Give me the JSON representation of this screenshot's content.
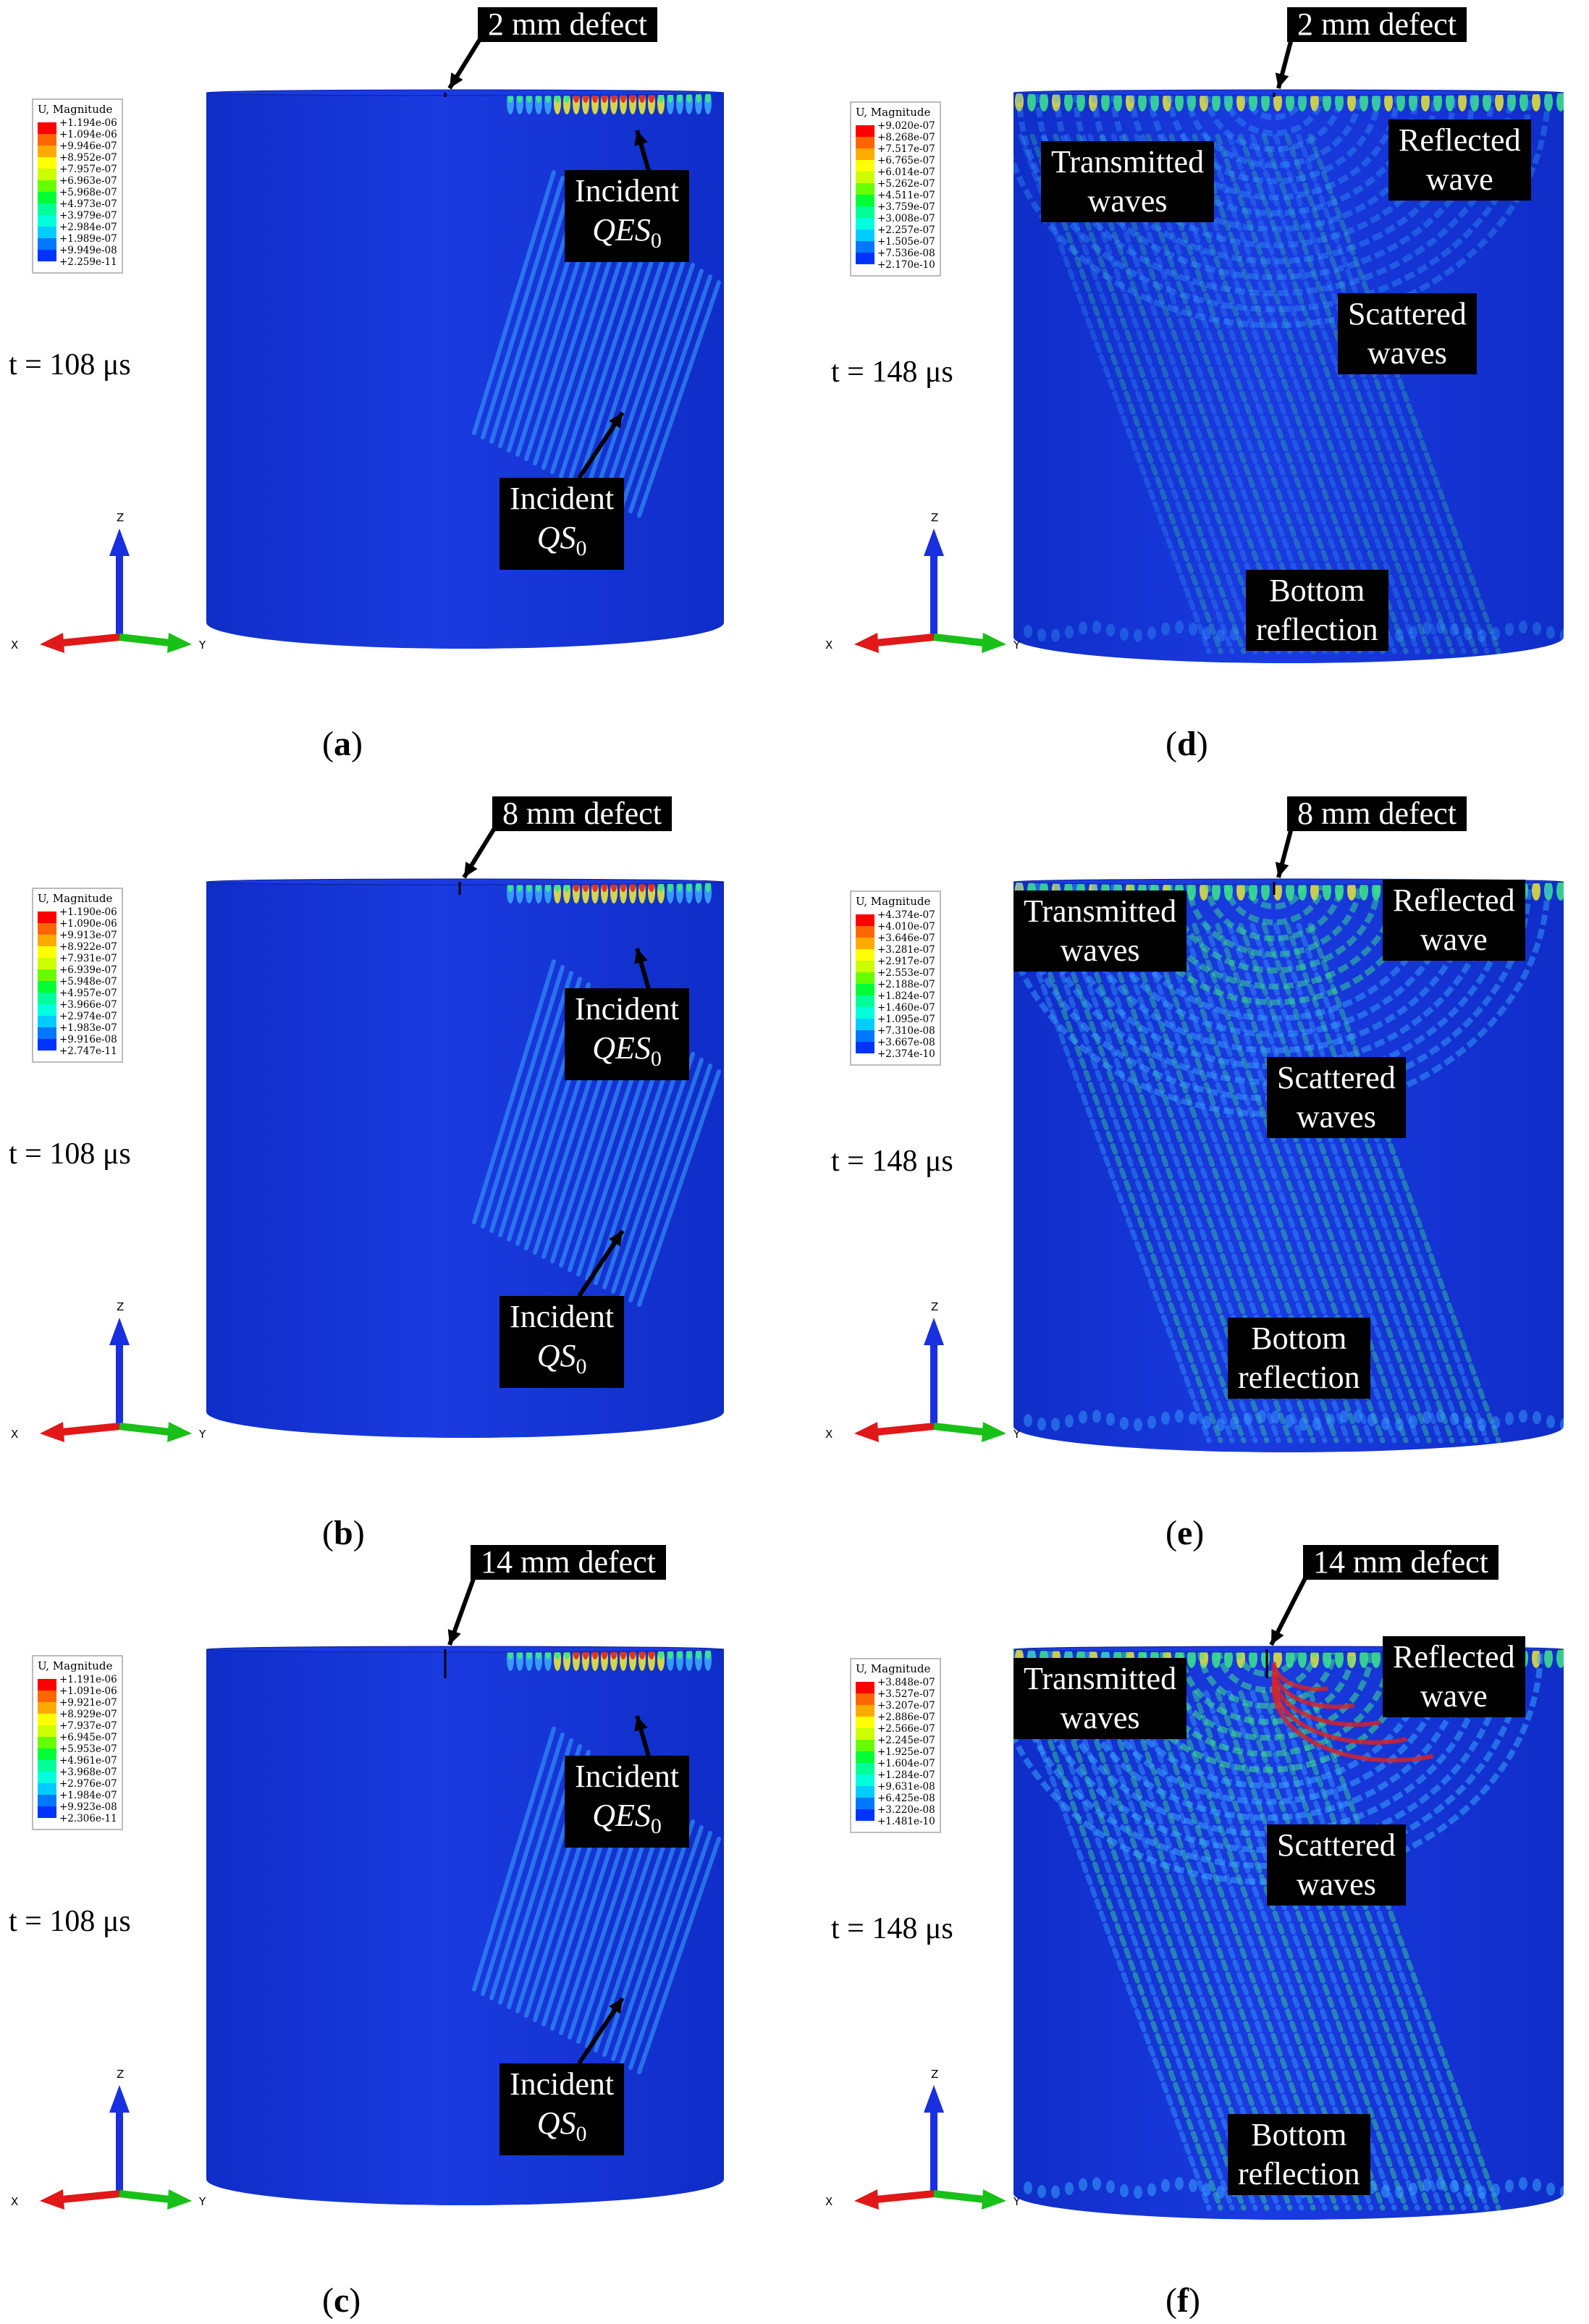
{
  "colors": {
    "cylinder_blue": "#1a3be0",
    "cylinder_dark": "#0f2dc8",
    "wave_cyan": "#3aa6ff",
    "wave_green": "#3de88a",
    "wave_yellow": "#e8e83a",
    "wave_red": "#e02020",
    "label_bg": "#000000",
    "label_text": "#ffffff",
    "axis_x": "#e01818",
    "axis_y": "#18c018",
    "axis_z": "#1830e0"
  },
  "legend_colors": [
    "#ff0000",
    "#ff6600",
    "#ffaa00",
    "#ffff00",
    "#ccff00",
    "#66ff00",
    "#00ff33",
    "#00ff99",
    "#00ffdd",
    "#00ccff",
    "#0077ff",
    "#0033ff",
    "#0000ff"
  ],
  "axis_letters": {
    "x": "X",
    "y": "Y",
    "z": "Z"
  },
  "panels": [
    {
      "id": "a",
      "time": "t = 108 μs",
      "caption_letter": "a",
      "defect": "2 mm defect",
      "legend": {
        "title": "U, Magnitude",
        "values": [
          "+1.194e-06",
          "+1.094e-06",
          "+9.946e-07",
          "+8.952e-07",
          "+7.957e-07",
          "+6.963e-07",
          "+5.968e-07",
          "+4.973e-07",
          "+3.979e-07",
          "+2.984e-07",
          "+1.989e-07",
          "+9.949e-08",
          "+2.259e-11"
        ]
      },
      "labels": [
        {
          "line1": "Incident",
          "line2": "QES",
          "sub": "0"
        },
        {
          "line1": "Incident",
          "line2": "QS",
          "sub": "0"
        }
      ]
    },
    {
      "id": "b",
      "time": "t = 108 μs",
      "caption_letter": "b",
      "defect": "8 mm defect",
      "legend": {
        "title": "U, Magnitude",
        "values": [
          "+1.190e-06",
          "+1.090e-06",
          "+9.913e-07",
          "+8.922e-07",
          "+7.931e-07",
          "+6.939e-07",
          "+5.948e-07",
          "+4.957e-07",
          "+3.966e-07",
          "+2.974e-07",
          "+1.983e-07",
          "+9.916e-08",
          "+2.747e-11"
        ]
      },
      "labels": [
        {
          "line1": "Incident",
          "line2": "QES",
          "sub": "0"
        },
        {
          "line1": "Incident",
          "line2": "QS",
          "sub": "0"
        }
      ]
    },
    {
      "id": "c",
      "time": "t = 108 μs",
      "caption_letter": "c",
      "defect": "14 mm defect",
      "legend": {
        "title": "U, Magnitude",
        "values": [
          "+1.191e-06",
          "+1.091e-06",
          "+9.921e-07",
          "+8.929e-07",
          "+7.937e-07",
          "+6.945e-07",
          "+5.953e-07",
          "+4.961e-07",
          "+3.968e-07",
          "+2.976e-07",
          "+1.984e-07",
          "+9.923e-08",
          "+2.306e-11"
        ]
      },
      "labels": [
        {
          "line1": "Incident",
          "line2": "QES",
          "sub": "0"
        },
        {
          "line1": "Incident",
          "line2": "QS",
          "sub": "0"
        }
      ]
    },
    {
      "id": "d",
      "time": "t = 148 μs",
      "caption_letter": "d",
      "defect": "2 mm defect",
      "legend": {
        "title": "U, Magnitude",
        "values": [
          "+9.020e-07",
          "+8.268e-07",
          "+7.517e-07",
          "+6.765e-07",
          "+6.014e-07",
          "+5.262e-07",
          "+4.511e-07",
          "+3.759e-07",
          "+3.008e-07",
          "+2.257e-07",
          "+1.505e-07",
          "+7.536e-08",
          "+2.170e-10"
        ]
      },
      "labels": [
        {
          "line1": "Transmitted",
          "line2": "waves"
        },
        {
          "line1": "Reflected",
          "line2": "wave"
        },
        {
          "line1": "Scattered",
          "line2": "waves"
        },
        {
          "line1": "Bottom",
          "line2": "reflection"
        }
      ]
    },
    {
      "id": "e",
      "time": "t = 148 μs",
      "caption_letter": "e",
      "defect": "8 mm defect",
      "legend": {
        "title": "U, Magnitude",
        "values": [
          "+4.374e-07",
          "+4.010e-07",
          "+3.646e-07",
          "+3.281e-07",
          "+2.917e-07",
          "+2.553e-07",
          "+2.188e-07",
          "+1.824e-07",
          "+1.460e-07",
          "+1.095e-07",
          "+7.310e-08",
          "+3.667e-08",
          "+2.374e-10"
        ]
      },
      "labels": [
        {
          "line1": "Transmitted",
          "line2": "waves"
        },
        {
          "line1": "Reflected",
          "line2": "wave"
        },
        {
          "line1": "Scattered",
          "line2": "waves"
        },
        {
          "line1": "Bottom",
          "line2": "reflection"
        }
      ]
    },
    {
      "id": "f",
      "time": "t = 148 μs",
      "caption_letter": "f",
      "defect": "14 mm defect",
      "legend": {
        "title": "U, Magnitude",
        "values": [
          "+3.848e-07",
          "+3.527e-07",
          "+3.207e-07",
          "+2.886e-07",
          "+2.566e-07",
          "+2.245e-07",
          "+1.925e-07",
          "+1.604e-07",
          "+1.284e-07",
          "+9.631e-08",
          "+6.425e-08",
          "+3.220e-08",
          "+1.481e-10"
        ]
      },
      "labels": [
        {
          "line1": "Transmitted",
          "line2": "waves"
        },
        {
          "line1": "Reflected",
          "line2": "wave"
        },
        {
          "line1": "Scattered",
          "line2": "waves"
        },
        {
          "line1": "Bottom",
          "line2": "reflection"
        }
      ]
    }
  ]
}
